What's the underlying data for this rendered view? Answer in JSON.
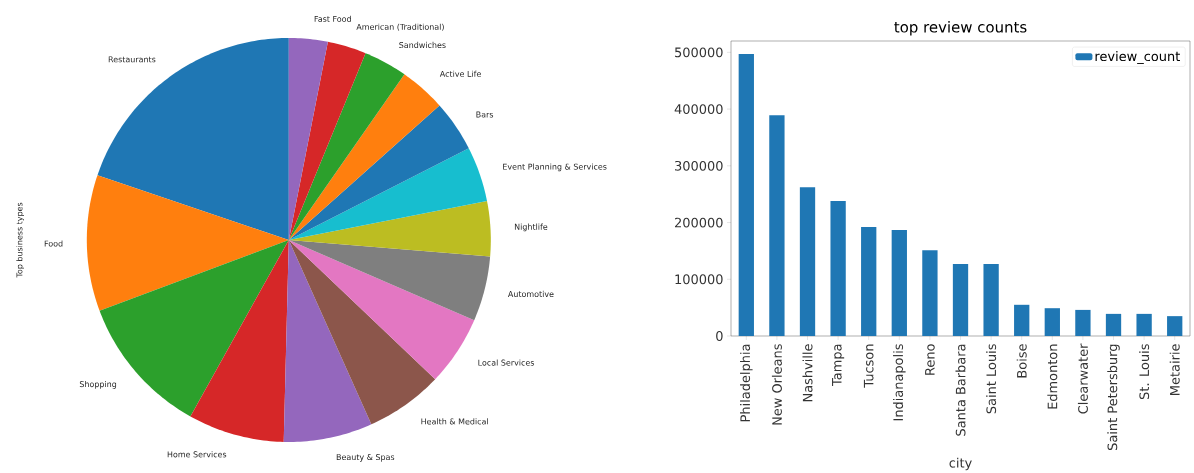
{
  "chart_data": [
    {
      "type": "pie",
      "ylabel": "Top business types",
      "categories": [
        "Restaurants",
        "Food",
        "Shopping",
        "Home Services",
        "Beauty & Spas",
        "Health & Medical",
        "Local Services",
        "Automotive",
        "Nightlife",
        "Event Planning & Services",
        "Bars",
        "Active Life",
        "Sandwiches",
        "American (Traditional)",
        "Fast Food"
      ],
      "values": [
        19.8,
        10.9,
        11.2,
        7.7,
        7.1,
        6.2,
        5.6,
        5.2,
        4.4,
        4.4,
        4.1,
        3.7,
        3.5,
        3.1,
        3.1
      ],
      "colors": [
        "#1f77b4",
        "#ff7f0e",
        "#2ca02c",
        "#d62728",
        "#9467bd",
        "#8c564b",
        "#e377c2",
        "#7f7f7f",
        "#bcbd22",
        "#17becf",
        "#1f77b4",
        "#ff7f0e",
        "#2ca02c",
        "#d62728",
        "#9467bd"
      ]
    },
    {
      "type": "bar",
      "title": "top review counts",
      "xlabel": "city",
      "categories": [
        "Philadelphia",
        "New Orleans",
        "Nashville",
        "Tampa",
        "Tucson",
        "Indianapolis",
        "Reno",
        "Santa Barbara",
        "Saint Louis",
        "Boise",
        "Edmonton",
        "Clearwater",
        "Saint Petersburg",
        "St. Louis",
        "Metairie"
      ],
      "series": [
        {
          "name": "review_count",
          "color": "#1f77b4",
          "values": [
            497000,
            389000,
            262000,
            238000,
            192000,
            187000,
            151000,
            127000,
            127000,
            55000,
            49000,
            46000,
            39000,
            39000,
            35000
          ]
        }
      ],
      "ylim": [
        0,
        520000
      ],
      "yticks": [
        0,
        100000,
        200000,
        300000,
        400000,
        500000
      ],
      "legend": "top right"
    }
  ]
}
